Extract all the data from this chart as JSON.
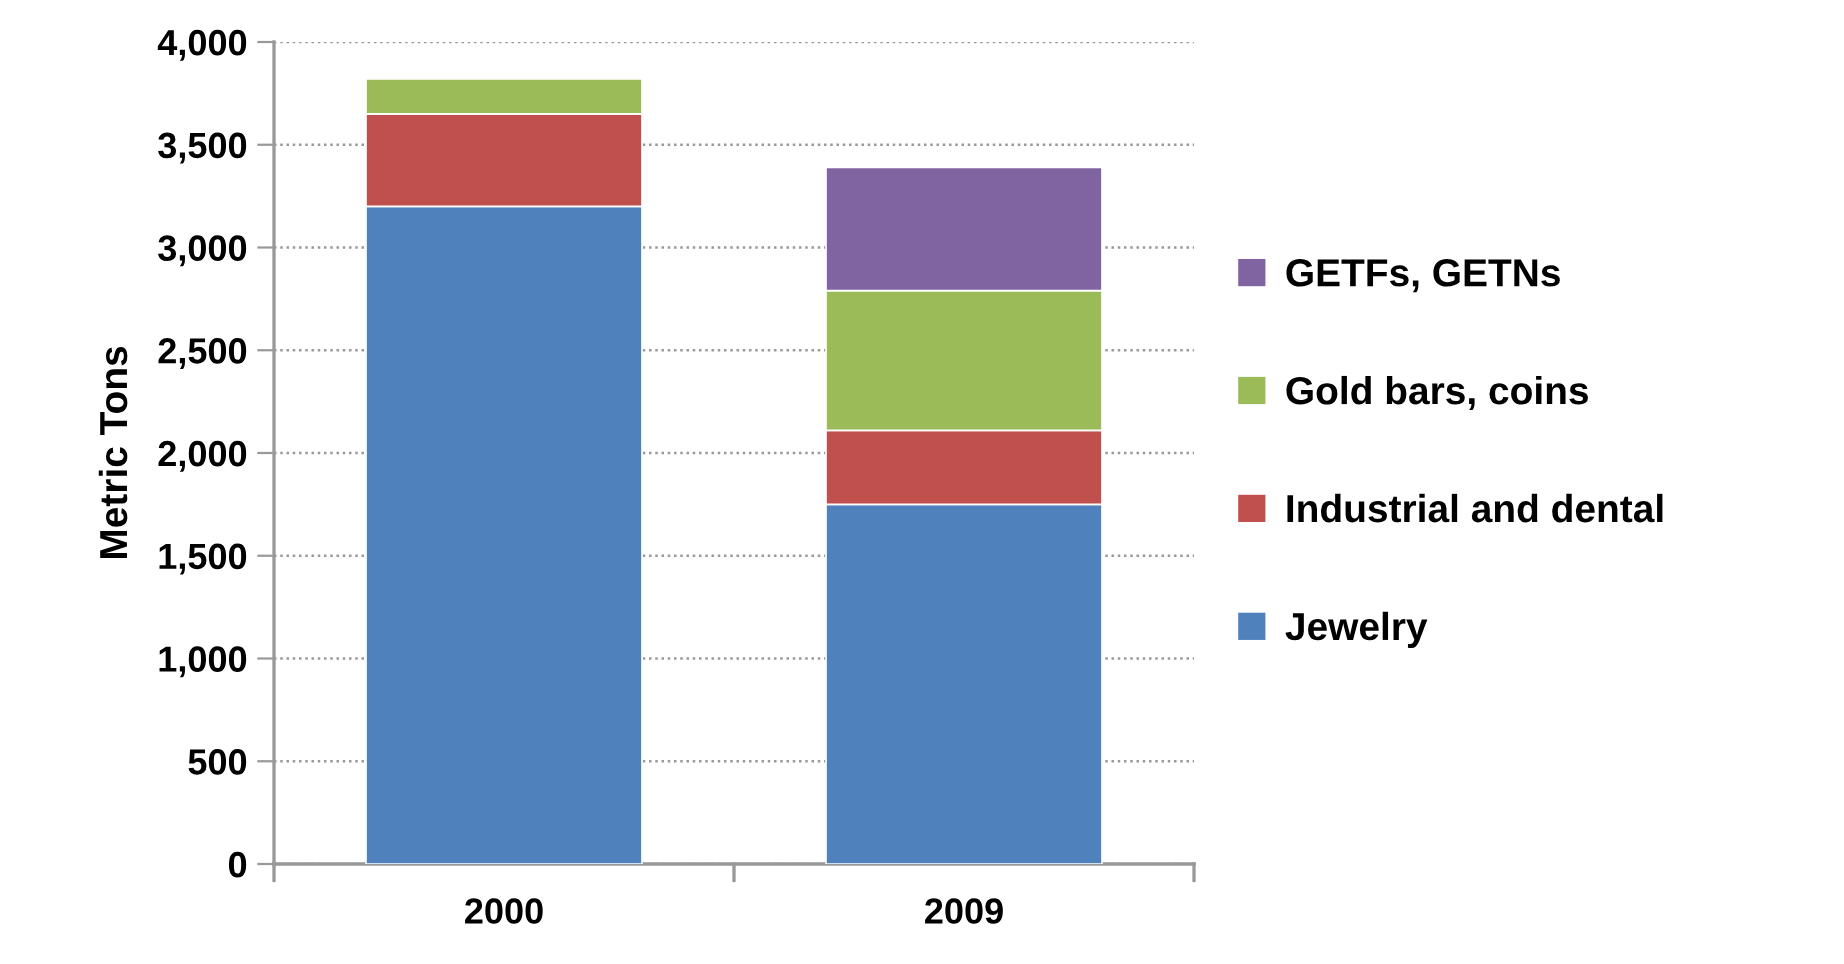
{
  "chart_data": {
    "type": "bar",
    "stacked": true,
    "ylabel": "Metric Tons",
    "categories": [
      "2000",
      "2009"
    ],
    "series": [
      {
        "name": "Jewelry",
        "color": "#4f81bd",
        "values": [
          3200,
          1750
        ]
      },
      {
        "name": "Industrial and dental",
        "color": "#c0504d",
        "values": [
          450,
          360
        ]
      },
      {
        "name": "Gold bars, coins",
        "color": "#9bbb59",
        "values": [
          170,
          680
        ]
      },
      {
        "name": "GETFs, GETNs",
        "color": "#8064a2",
        "values": [
          null,
          600
        ]
      }
    ],
    "ylim": [
      0,
      4000
    ],
    "yticks": [
      {
        "value": 0,
        "label": "0"
      },
      {
        "value": 500,
        "label": "500"
      },
      {
        "value": 1000,
        "label": "1,000"
      },
      {
        "value": 1500,
        "label": "1,500"
      },
      {
        "value": 2000,
        "label": "2,000"
      },
      {
        "value": 2500,
        "label": "2,500"
      },
      {
        "value": 3000,
        "label": "3,000"
      },
      {
        "value": 3500,
        "label": "3,500"
      },
      {
        "value": 4000,
        "label": "4,000"
      }
    ],
    "grid": "y",
    "legend": "right"
  }
}
